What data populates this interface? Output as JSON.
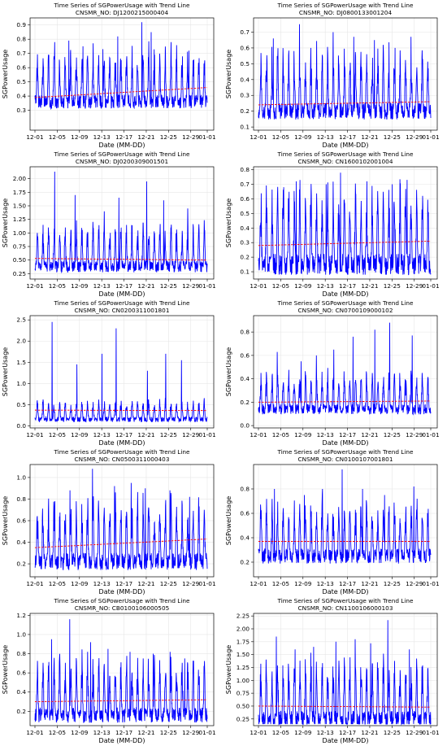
{
  "chart_data": [
    {
      "type": "line",
      "title": "Time Series of SGPowerUsage with Trend Line",
      "subtitle": "CNSMR_NO: DJ1200215000404",
      "xlabel": "Date (MM-DD)",
      "ylabel": "SGPowerUsage",
      "xticks": [
        "12-01",
        "12-05",
        "12-09",
        "12-13",
        "12-17",
        "12-21",
        "12-25",
        "12-29",
        "01-01"
      ],
      "yticks": [
        "0.3",
        "0.4",
        "0.5",
        "0.6",
        "0.7",
        "0.8",
        "0.9"
      ],
      "ylim": [
        0.16,
        0.95
      ],
      "grid": true,
      "series": [
        {
          "color": "#0000ff",
          "style": "solid",
          "params": {
            "base": 0.36,
            "amp": 0.28,
            "spikes": [
              0.78,
              0.79,
              0.75,
              0.73,
              0.82,
              0.92,
              0.85,
              0.78,
              0.72
            ],
            "min": 0.18,
            "seed": 3
          }
        },
        {
          "color": "#ff0000",
          "style": "dashed",
          "trend": [
            0.39,
            0.46
          ]
        }
      ]
    },
    {
      "type": "line",
      "title": "Time Series of SGPowerUsage with Trend Line",
      "subtitle": "CNSMR_NO: DJ0800133001204",
      "xlabel": "Date (MM-DD)",
      "ylabel": "SGPowerUsage",
      "xticks": [
        "12-01",
        "12-05",
        "12-09",
        "12-13",
        "12-17",
        "12-21",
        "12-25",
        "12-29",
        "01-01"
      ],
      "yticks": [
        "0.1",
        "0.2",
        "0.3",
        "0.4",
        "0.5",
        "0.6",
        "0.7"
      ],
      "ylim": [
        0.08,
        0.79
      ],
      "grid": true,
      "series": [
        {
          "color": "#0000ff",
          "style": "solid",
          "params": {
            "base": 0.2,
            "amp": 0.3,
            "spikes": [
              0.66,
              0.75,
              0.6,
              0.7,
              0.67,
              0.65,
              0.6,
              0.67
            ],
            "min": 0.1,
            "seed": 7
          }
        },
        {
          "color": "#ff0000",
          "style": "dashed",
          "trend": [
            0.24,
            0.26
          ]
        }
      ]
    },
    {
      "type": "line",
      "title": "Time Series of SGPowerUsage with Trend Line",
      "subtitle": "CNSMR_NO: DJ0200309001501",
      "xlabel": "Date (MM-DD)",
      "ylabel": "SGPowerUsage",
      "xticks": [
        "12-01",
        "12-05",
        "12-09",
        "12-13",
        "12-17",
        "12-21",
        "12-25",
        "12-29",
        "01-01"
      ],
      "yticks": [
        "0.25",
        "0.50",
        "0.75",
        "1.00",
        "1.25",
        "1.50",
        "1.75",
        "2.00"
      ],
      "ylim": [
        0.15,
        2.22
      ],
      "grid": true,
      "series": [
        {
          "color": "#0000ff",
          "style": "solid",
          "params": {
            "base": 0.38,
            "amp": 0.6,
            "spikes": [
              2.13,
              1.7,
              1.4,
              1.65,
              1.95,
              1.6,
              1.45
            ],
            "min": 0.25,
            "seed": 11
          }
        },
        {
          "color": "#ff0000",
          "style": "dashed",
          "trend": [
            0.53,
            0.5
          ]
        }
      ]
    },
    {
      "type": "line",
      "title": "Time Series of SGPowerUsage with Trend Line",
      "subtitle": "CNSMR_NO: CN1600102001004",
      "xlabel": "Date (MM-DD)",
      "ylabel": "SGPowerUsage",
      "xticks": [
        "12-01",
        "12-05",
        "12-09",
        "12-13",
        "12-17",
        "12-21",
        "12-25",
        "12-29",
        "01-01"
      ],
      "yticks": [
        "0.1",
        "0.2",
        "0.3",
        "0.4",
        "0.5",
        "0.6",
        "0.7",
        "0.8"
      ],
      "ylim": [
        0.05,
        0.82
      ],
      "grid": true,
      "series": [
        {
          "color": "#0000ff",
          "style": "solid",
          "params": {
            "base": 0.15,
            "amp": 0.42,
            "spikes": [
              0.68,
              0.72,
              0.7,
              0.78,
              0.72,
              0.7,
              0.73
            ],
            "min": 0.08,
            "seed": 19
          }
        },
        {
          "color": "#ff0000",
          "style": "dashed",
          "trend": [
            0.28,
            0.31
          ]
        }
      ]
    },
    {
      "type": "line",
      "title": "Time Series of SGPowerUsage with Trend Line",
      "subtitle": "CNSMR_NO: CN0200311001801",
      "xlabel": "Date (MM-DD)",
      "ylabel": "SGPowerUsage",
      "xticks": [
        "12-01",
        "12-05",
        "12-09",
        "12-13",
        "12-17",
        "12-21",
        "12-25",
        "12-29",
        "01-01"
      ],
      "yticks": [
        "0.0",
        "0.5",
        "1.0",
        "1.5",
        "2.0",
        "2.5"
      ],
      "ylim": [
        -0.05,
        2.6
      ],
      "grid": true,
      "series": [
        {
          "color": "#0000ff",
          "style": "solid",
          "params": {
            "base": 0.15,
            "amp": 0.35,
            "spikes": [
              2.45,
              1.45,
              1.7,
              2.3,
              1.3,
              1.7,
              1.55
            ],
            "min": 0.05,
            "seed": 23
          }
        },
        {
          "color": "#ff0000",
          "style": "dashed",
          "trend": [
            0.37,
            0.36
          ]
        }
      ]
    },
    {
      "type": "line",
      "title": "Time Series of SGPowerUsage with Trend Line",
      "subtitle": "CNSMR_NO: CN0700109000102",
      "xlabel": "Date (MM-DD)",
      "ylabel": "SGPowerUsage",
      "xticks": [
        "12-01",
        "12-05",
        "12-09",
        "12-13",
        "12-17",
        "12-21",
        "12-25",
        "12-29",
        "01-01"
      ],
      "yticks": [
        "0.0",
        "0.2",
        "0.4",
        "0.6",
        "0.8"
      ],
      "ylim": [
        -0.02,
        0.94
      ],
      "grid": true,
      "series": [
        {
          "color": "#0000ff",
          "style": "solid",
          "params": {
            "base": 0.14,
            "amp": 0.25,
            "spikes": [
              0.63,
              0.55,
              0.6,
              0.65,
              0.76,
              0.82,
              0.88,
              0.77
            ],
            "min": 0.04,
            "seed": 29
          }
        },
        {
          "color": "#ff0000",
          "style": "dashed",
          "trend": [
            0.2,
            0.21
          ]
        }
      ]
    },
    {
      "type": "line",
      "title": "Time Series of SGPowerUsage with Trend Line",
      "subtitle": "CNSMR_NO: CN0500311000403",
      "xlabel": "Date (MM-DD)",
      "ylabel": "SGPowerUsage",
      "xticks": [
        "12-01",
        "12-05",
        "12-09",
        "12-13",
        "12-17",
        "12-21",
        "12-25",
        "12-29",
        "01-01"
      ],
      "yticks": [
        "0.2",
        "0.4",
        "0.6",
        "0.8",
        "1.0"
      ],
      "ylim": [
        0.08,
        1.12
      ],
      "grid": true,
      "series": [
        {
          "color": "#0000ff",
          "style": "solid",
          "params": {
            "base": 0.22,
            "amp": 0.45,
            "spikes": [
              0.78,
              0.88,
              1.08,
              0.92,
              0.95,
              0.9,
              0.88,
              0.82
            ],
            "min": 0.1,
            "seed": 31
          }
        },
        {
          "color": "#ff0000",
          "style": "dashed",
          "trend": [
            0.35,
            0.43
          ]
        }
      ]
    },
    {
      "type": "line",
      "title": "Time Series of SGPowerUsage with Trend Line",
      "subtitle": "CNSMR_NO: CN0100107001801",
      "xlabel": "Date (MM-DD)",
      "ylabel": "SGPowerUsage",
      "xticks": [
        "12-01",
        "12-05",
        "12-09",
        "12-13",
        "12-17",
        "12-21",
        "12-25",
        "12-29",
        "01-01"
      ],
      "yticks": [
        "0.2",
        "0.4",
        "0.6",
        "0.8"
      ],
      "ylim": [
        0.08,
        1.0
      ],
      "grid": true,
      "series": [
        {
          "color": "#0000ff",
          "style": "solid",
          "params": {
            "base": 0.25,
            "amp": 0.35,
            "spikes": [
              0.8,
              0.75,
              0.8,
              0.96,
              0.8,
              0.75,
              0.82
            ],
            "min": 0.1,
            "seed": 37
          }
        },
        {
          "color": "#ff0000",
          "style": "dashed",
          "trend": [
            0.37,
            0.37
          ]
        }
      ]
    },
    {
      "type": "line",
      "title": "Time Series of SGPowerUsage with Trend Line",
      "subtitle": "CNSMR_NO: CB0100106000505",
      "xlabel": "Date (MM-DD)",
      "ylabel": "SGPowerUsage",
      "xticks": [
        "12-01",
        "12-05",
        "12-09",
        "12-13",
        "12-17",
        "12-21",
        "12-25",
        "12-29",
        "01-01"
      ],
      "yticks": [
        "0.2",
        "0.4",
        "0.6",
        "0.8",
        "1.0",
        "1.2"
      ],
      "ylim": [
        0.05,
        1.22
      ],
      "grid": true,
      "series": [
        {
          "color": "#0000ff",
          "style": "solid",
          "params": {
            "base": 0.16,
            "amp": 0.45,
            "spikes": [
              0.95,
              1.16,
              0.92,
              0.85,
              0.82,
              0.8,
              0.82,
              0.75
            ],
            "min": 0.08,
            "seed": 41
          }
        },
        {
          "color": "#ff0000",
          "style": "dashed",
          "trend": [
            0.3,
            0.32
          ]
        }
      ]
    },
    {
      "type": "line",
      "title": "Time Series of SGPowerUsage with Trend Line",
      "subtitle": "CNSMR_NO: CN1100106000103",
      "xlabel": "Date (MM-DD)",
      "ylabel": "SGPowerUsage",
      "xticks": [
        "12-01",
        "12-05",
        "12-09",
        "12-13",
        "12-17",
        "12-21",
        "12-25",
        "12-29",
        "01-01"
      ],
      "yticks": [
        "0.25",
        "0.50",
        "0.75",
        "1.00",
        "1.25",
        "1.50",
        "1.75",
        "2.00",
        "2.25"
      ],
      "ylim": [
        0.12,
        2.3
      ],
      "grid": true,
      "series": [
        {
          "color": "#0000ff",
          "style": "solid",
          "params": {
            "base": 0.25,
            "amp": 0.9,
            "spikes": [
              1.85,
              1.6,
              1.65,
              1.75,
              1.8,
              1.72,
              2.17,
              1.6
            ],
            "min": 0.15,
            "seed": 43
          }
        },
        {
          "color": "#ff0000",
          "style": "dashed",
          "trend": [
            0.5,
            0.48
          ]
        }
      ]
    }
  ]
}
